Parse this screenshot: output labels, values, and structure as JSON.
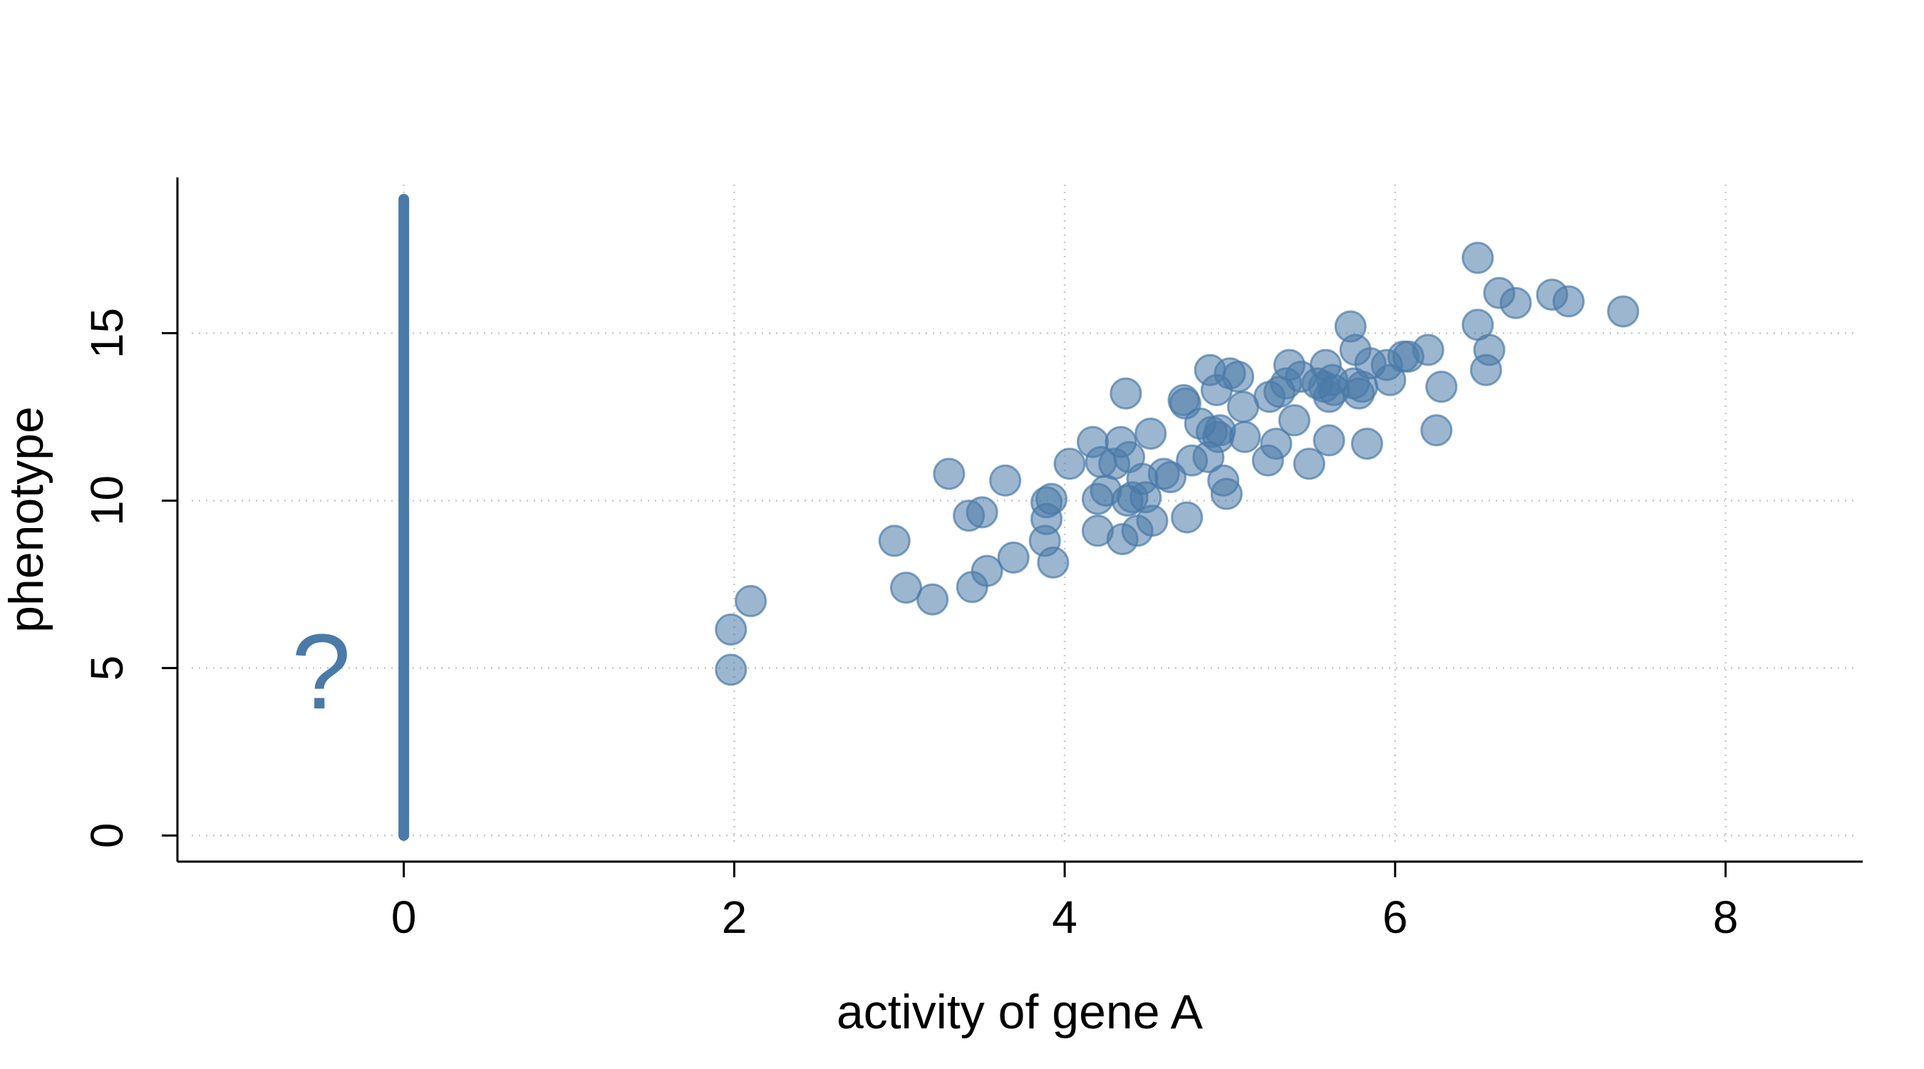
{
  "chart_data": {
    "type": "scatter",
    "xlabel": "activity of gene A",
    "ylabel": "phenotype",
    "xlim": [
      -1.37,
      8.83
    ],
    "ylim": [
      -0.78,
      19.65
    ],
    "xticks": [
      0,
      2,
      4,
      6,
      8
    ],
    "yticks": [
      0,
      5,
      10,
      15
    ],
    "grid": true,
    "colors": {
      "points": "#4a7aa8",
      "line": "#4a7aa8"
    },
    "vertical_line": {
      "x": 0,
      "y_from": 0,
      "y_to": 19
    },
    "annotations": [
      {
        "text": "?",
        "x": -0.5,
        "y": 4.9
      }
    ],
    "points": [
      [
        1.98,
        6.15
      ],
      [
        1.98,
        4.95
      ],
      [
        2.1,
        7.0
      ],
      [
        2.97,
        8.8
      ],
      [
        3.04,
        7.4
      ],
      [
        3.2,
        7.05
      ],
      [
        3.3,
        10.8
      ],
      [
        3.42,
        9.55
      ],
      [
        3.44,
        7.42
      ],
      [
        3.5,
        9.65
      ],
      [
        3.53,
        7.9
      ],
      [
        3.64,
        10.6
      ],
      [
        3.69,
        8.3
      ],
      [
        3.88,
        8.8
      ],
      [
        3.89,
        9.45
      ],
      [
        3.89,
        9.95
      ],
      [
        3.92,
        10.05
      ],
      [
        3.93,
        8.15
      ],
      [
        4.03,
        11.1
      ],
      [
        4.17,
        11.75
      ],
      [
        4.2,
        10.05
      ],
      [
        4.2,
        9.1
      ],
      [
        4.22,
        11.15
      ],
      [
        4.25,
        10.3
      ],
      [
        4.3,
        11.1
      ],
      [
        4.34,
        11.75
      ],
      [
        4.35,
        8.85
      ],
      [
        4.37,
        13.2
      ],
      [
        4.38,
        10.0
      ],
      [
        4.39,
        11.3
      ],
      [
        4.41,
        10.1
      ],
      [
        4.44,
        9.1
      ],
      [
        4.47,
        10.65
      ],
      [
        4.49,
        10.1
      ],
      [
        4.52,
        12.0
      ],
      [
        4.53,
        9.4
      ],
      [
        4.6,
        10.8
      ],
      [
        4.64,
        10.7
      ],
      [
        4.72,
        13.0
      ],
      [
        4.73,
        12.9
      ],
      [
        4.74,
        9.5
      ],
      [
        4.77,
        11.2
      ],
      [
        4.82,
        12.3
      ],
      [
        4.87,
        11.3
      ],
      [
        4.88,
        13.9
      ],
      [
        4.89,
        12.05
      ],
      [
        4.92,
        13.3
      ],
      [
        4.93,
        11.9
      ],
      [
        4.94,
        12.1
      ],
      [
        4.96,
        10.6
      ],
      [
        4.98,
        10.2
      ],
      [
        5.0,
        13.8
      ],
      [
        5.05,
        13.7
      ],
      [
        5.08,
        12.8
      ],
      [
        5.09,
        11.9
      ],
      [
        5.23,
        11.2
      ],
      [
        5.24,
        13.1
      ],
      [
        5.28,
        11.7
      ],
      [
        5.3,
        13.25
      ],
      [
        5.34,
        13.5
      ],
      [
        5.36,
        14.05
      ],
      [
        5.39,
        12.4
      ],
      [
        5.43,
        13.7
      ],
      [
        5.48,
        11.1
      ],
      [
        5.53,
        13.5
      ],
      [
        5.57,
        13.4
      ],
      [
        5.58,
        14.05
      ],
      [
        5.6,
        11.8
      ],
      [
        5.6,
        13.1
      ],
      [
        5.62,
        13.6
      ],
      [
        5.63,
        13.3
      ],
      [
        5.73,
        15.2
      ],
      [
        5.75,
        13.5
      ],
      [
        5.76,
        14.5
      ],
      [
        5.78,
        13.2
      ],
      [
        5.8,
        13.4
      ],
      [
        5.83,
        11.7
      ],
      [
        5.85,
        14.1
      ],
      [
        5.95,
        14.05
      ],
      [
        5.97,
        13.6
      ],
      [
        6.05,
        14.3
      ],
      [
        6.08,
        14.3
      ],
      [
        6.2,
        14.5
      ],
      [
        6.25,
        12.1
      ],
      [
        6.28,
        13.4
      ],
      [
        6.5,
        17.25
      ],
      [
        6.5,
        15.25
      ],
      [
        6.55,
        13.9
      ],
      [
        6.57,
        14.5
      ],
      [
        6.63,
        16.2
      ],
      [
        6.73,
        15.9
      ],
      [
        6.95,
        16.15
      ],
      [
        7.05,
        15.95
      ],
      [
        7.38,
        15.65
      ]
    ]
  }
}
